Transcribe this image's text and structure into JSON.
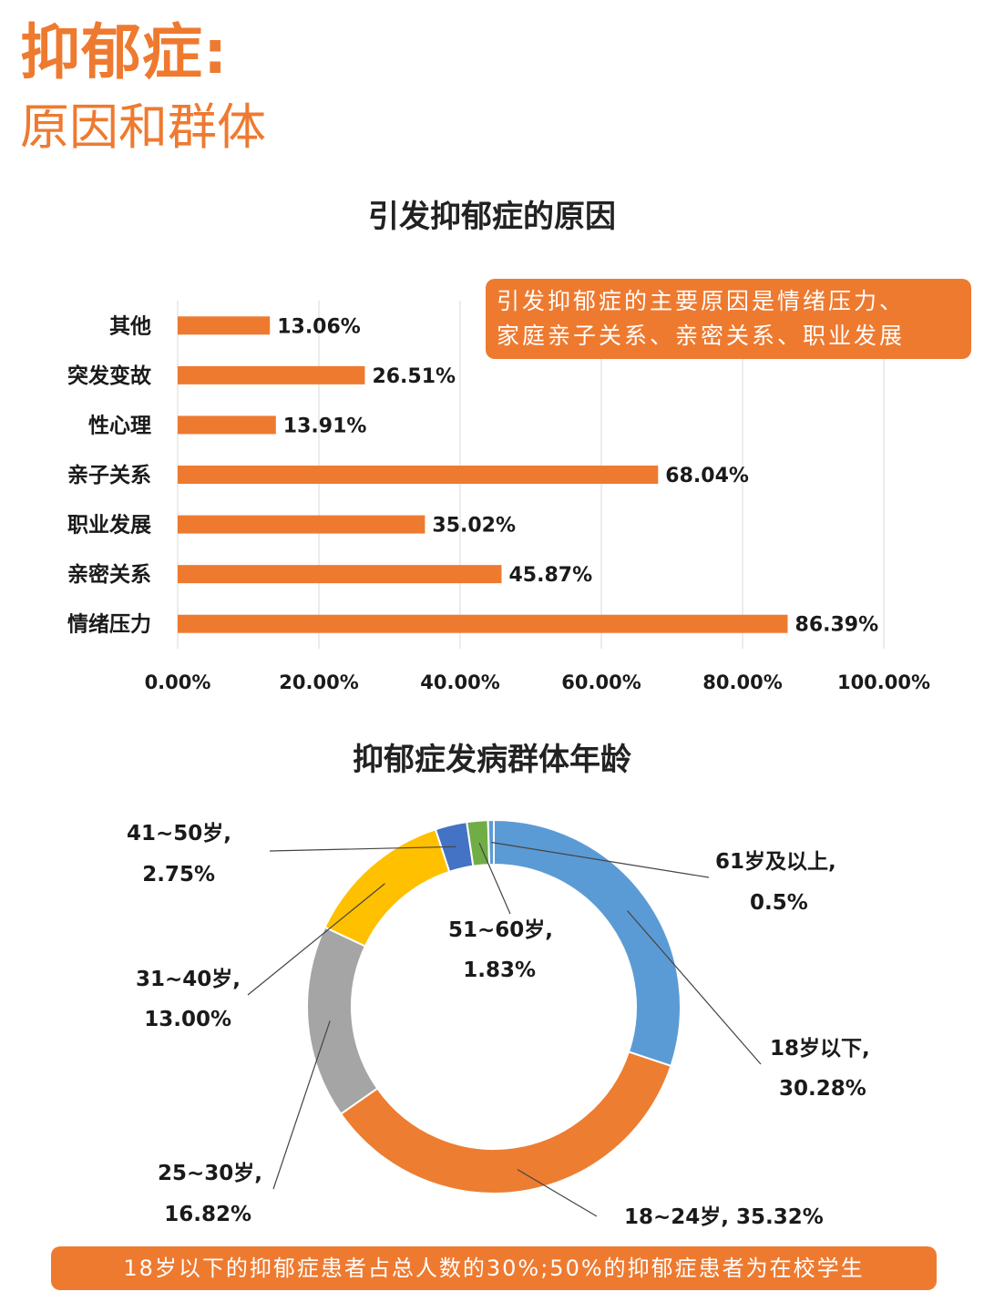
{
  "header": {
    "title": "抑郁症:",
    "subtitle": "原因和群体"
  },
  "callouts": {
    "bar_note_line1": "引发抑郁症的主要原因是情绪压力、",
    "bar_note_line2": "家庭亲子关系、亲密关系、职业发展",
    "footer_note": "18岁以下的抑郁症患者占总人数的30%;50%的抑郁症患者为在校学生"
  },
  "colors": {
    "accent": "#ee7a30",
    "bar": "#ee7a30",
    "slice_blue": "#5b9bd5",
    "slice_orange": "#ed7d31",
    "slice_gray": "#a5a5a5",
    "slice_yellow": "#ffc000",
    "slice_darkblue": "#4472c4",
    "slice_green": "#70ad47"
  },
  "chart_data": [
    {
      "type": "bar",
      "orientation": "horizontal",
      "title": "引发抑郁症的原因",
      "categories": [
        "其他",
        "突发变故",
        "性心理",
        "亲子关系",
        "职业发展",
        "亲密关系",
        "情绪压力"
      ],
      "values": [
        13.06,
        26.51,
        13.91,
        68.04,
        35.02,
        45.87,
        86.39
      ],
      "value_labels": [
        "13.06%",
        "26.51%",
        "13.91%",
        "68.04%",
        "35.02%",
        "45.87%",
        "86.39%"
      ],
      "xlim": [
        0,
        100
      ],
      "x_ticks": [
        "0.00%",
        "20.00%",
        "40.00%",
        "60.00%",
        "80.00%",
        "100.00%"
      ],
      "grid": true,
      "color": "#ee7a30"
    },
    {
      "type": "pie",
      "variant": "donut",
      "title": "抑郁症发病群体年龄",
      "slices": [
        {
          "name": "18岁以下,",
          "value": 30.28,
          "label": "30.28%",
          "color": "#5b9bd5"
        },
        {
          "name": "18~24岁, 35.32%",
          "value": 35.32,
          "label": "",
          "color": "#ed7d31"
        },
        {
          "name": "25~30岁,",
          "value": 16.82,
          "label": "16.82%",
          "color": "#a5a5a5"
        },
        {
          "name": "31~40岁,",
          "value": 13.0,
          "label": "13.00%",
          "color": "#ffc000"
        },
        {
          "name": "41~50岁,",
          "value": 2.75,
          "label": "2.75%",
          "color": "#4472c4"
        },
        {
          "name": "51~60岁,",
          "value": 1.83,
          "label": "1.83%",
          "color": "#70ad47"
        },
        {
          "name": "61岁及以上,",
          "value": 0.5,
          "label": "0.5%",
          "color": "#5b9bd5"
        }
      ]
    }
  ]
}
